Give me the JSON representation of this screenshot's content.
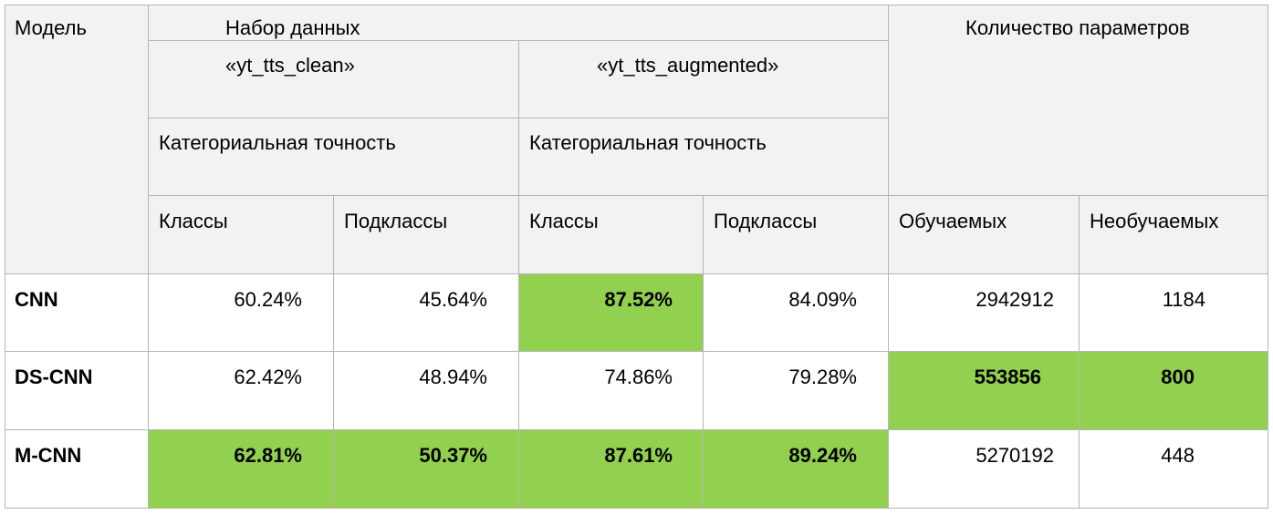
{
  "header": {
    "model": "Модель",
    "dataset": "Набор данных",
    "params": "Количество параметров",
    "clean": "«yt_tts_clean»",
    "augmented": "«yt_tts_augmented»",
    "metric_clean": "Категориальная точность",
    "metric_aug": "Категориальная точность",
    "classes_clean": "Классы",
    "subclasses_clean": "Подклассы",
    "classes_aug": "Классы",
    "subclasses_aug": "Подклассы",
    "trainable": "Обучаемых",
    "nontrainable": "Необучаемых"
  },
  "rows": [
    {
      "model": "CNN",
      "clean_classes": "60.24%",
      "clean_subclasses": "45.64%",
      "aug_classes": "87.52%",
      "aug_subclasses": "84.09%",
      "trainable": "2942912",
      "nontrainable": "1184"
    },
    {
      "model": "DS-CNN",
      "clean_classes": "62.42%",
      "clean_subclasses": "48.94%",
      "aug_classes": "74.86%",
      "aug_subclasses": "79.28%",
      "trainable": "553856",
      "nontrainable": "800"
    },
    {
      "model": "M-CNN",
      "clean_classes": "62.81%",
      "clean_subclasses": "50.37%",
      "aug_classes": "87.61%",
      "aug_subclasses": "89.24%",
      "trainable": "5270192",
      "nontrainable": "448"
    }
  ],
  "highlight_color": "#92d050",
  "header_color": "#f2f2f2"
}
